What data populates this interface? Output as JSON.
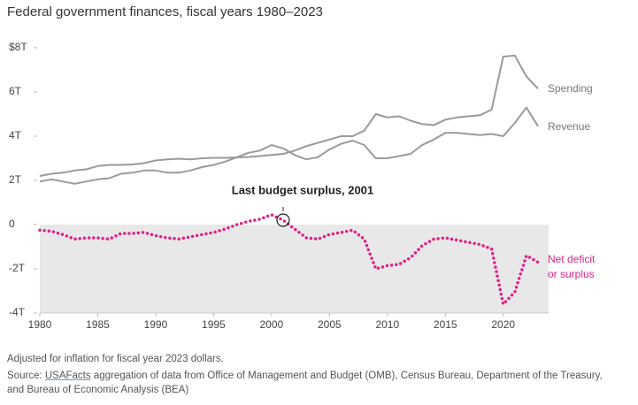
{
  "chart_data": {
    "type": "line",
    "title": "Federal government finances, fiscal years 1980–2023",
    "x": [
      1980,
      1981,
      1982,
      1983,
      1984,
      1985,
      1986,
      1987,
      1988,
      1989,
      1990,
      1991,
      1992,
      1993,
      1994,
      1995,
      1996,
      1997,
      1998,
      1999,
      2000,
      2001,
      2002,
      2003,
      2004,
      2005,
      2006,
      2007,
      2008,
      2009,
      2010,
      2011,
      2012,
      2013,
      2014,
      2015,
      2016,
      2017,
      2018,
      2019,
      2020,
      2021,
      2022,
      2023
    ],
    "series": [
      {
        "name": "Spending",
        "color": "#9a9a9a",
        "style": "solid",
        "values": [
          2.2,
          2.3,
          2.35,
          2.45,
          2.5,
          2.65,
          2.7,
          2.7,
          2.72,
          2.78,
          2.9,
          2.95,
          2.98,
          2.95,
          3.0,
          3.02,
          3.02,
          3.04,
          3.06,
          3.1,
          3.15,
          3.2,
          3.35,
          3.55,
          3.7,
          3.85,
          4.0,
          4.0,
          4.25,
          5.0,
          4.85,
          4.9,
          4.7,
          4.55,
          4.5,
          4.75,
          4.85,
          4.9,
          4.95,
          5.2,
          7.6,
          7.65,
          6.7,
          6.15
        ]
      },
      {
        "name": "Revenue",
        "color": "#9a9a9a",
        "style": "solid",
        "values": [
          1.95,
          2.05,
          1.95,
          1.85,
          1.95,
          2.05,
          2.1,
          2.3,
          2.35,
          2.45,
          2.45,
          2.35,
          2.35,
          2.45,
          2.6,
          2.7,
          2.85,
          3.05,
          3.25,
          3.35,
          3.6,
          3.45,
          3.15,
          2.95,
          3.05,
          3.4,
          3.65,
          3.8,
          3.6,
          3.0,
          3.0,
          3.1,
          3.2,
          3.6,
          3.85,
          4.15,
          4.15,
          4.1,
          4.05,
          4.1,
          4.0,
          4.6,
          5.3,
          4.45
        ]
      },
      {
        "name": "Net deficit or surplus",
        "color": "#e0218a",
        "style": "dotted",
        "values": [
          -0.25,
          -0.3,
          -0.45,
          -0.65,
          -0.6,
          -0.6,
          -0.65,
          -0.4,
          -0.4,
          -0.35,
          -0.5,
          -0.6,
          -0.65,
          -0.55,
          -0.45,
          -0.35,
          -0.2,
          0.0,
          0.15,
          0.25,
          0.45,
          0.2,
          -0.2,
          -0.6,
          -0.65,
          -0.45,
          -0.35,
          -0.25,
          -0.65,
          -2.0,
          -1.85,
          -1.8,
          -1.5,
          -0.95,
          -0.65,
          -0.6,
          -0.7,
          -0.8,
          -0.9,
          -1.1,
          -3.6,
          -3.05,
          -1.4,
          -1.7
        ]
      }
    ],
    "xlim": [
      1980,
      2023
    ],
    "xticks": [
      1980,
      1985,
      1990,
      1995,
      2000,
      2005,
      2010,
      2015,
      2020
    ],
    "ylim": [
      -4,
      8
    ],
    "yticks": [
      {
        "value": -4,
        "label": "-4T"
      },
      {
        "value": -2,
        "label": "-2T"
      },
      0,
      {
        "value": 2,
        "label": "2T"
      },
      {
        "value": 4,
        "label": "4T"
      },
      {
        "value": 6,
        "label": "6T"
      },
      {
        "value": 8,
        "label": "$8T"
      }
    ],
    "shade_below_zero": "#e8e8e8",
    "annotation": {
      "text": "Last budget surplus, 2001",
      "x": 2001
    },
    "footnote": "Adjusted for inflation for fiscal year 2023 dollars.",
    "source_label": "Source:",
    "source_link": "USAFacts",
    "source_text": "aggregation of data from Office of Management and Budget (OMB), Census Bureau, Department of the Treasury, and Bureau of Economic Analysis (BEA)"
  }
}
